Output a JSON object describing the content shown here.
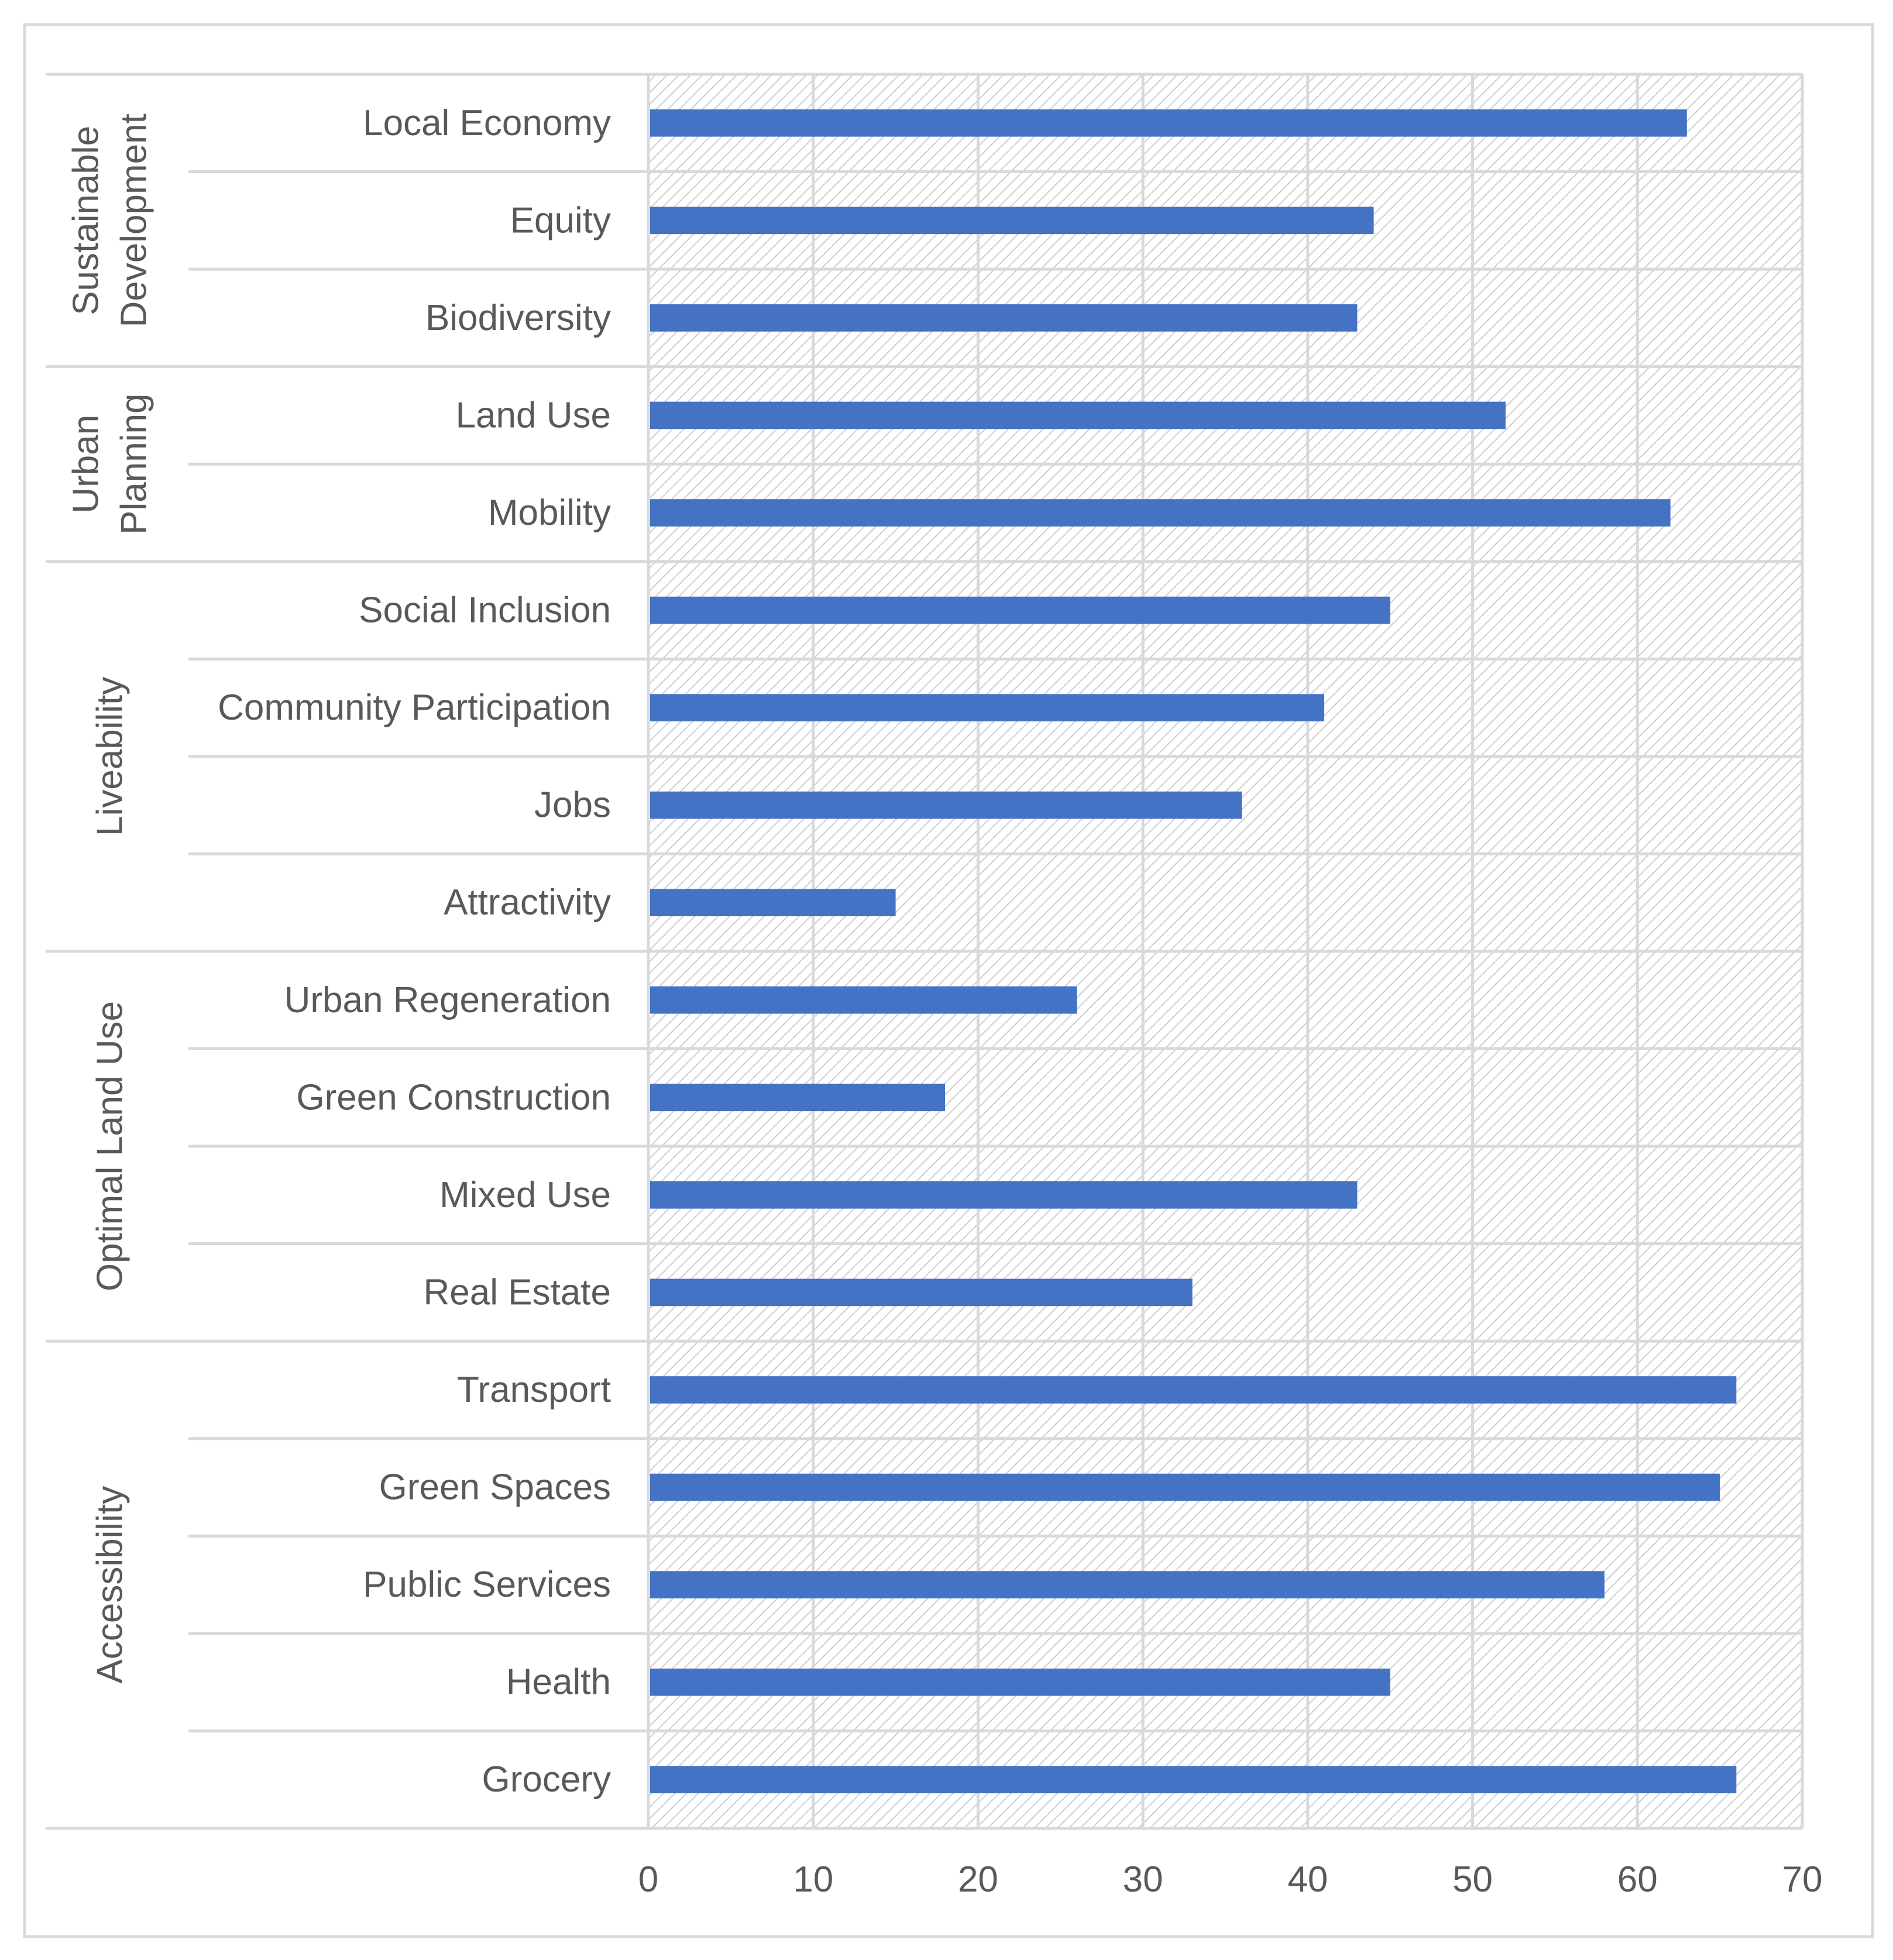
{
  "chart_data": {
    "type": "bar",
    "orientation": "horizontal",
    "title": "",
    "xlabel": "",
    "ylabel": "",
    "xlim": [
      0,
      70
    ],
    "x_ticks": [
      "0",
      "10",
      "20",
      "30",
      "40",
      "50",
      "60",
      "70"
    ],
    "grid": true,
    "legend": "none",
    "bar_color": "#4472C4",
    "groups": [
      {
        "name": "Sustainable Development",
        "label_lines": [
          "Sustainable",
          "Development"
        ],
        "categories": [
          "Local Economy",
          "Equity",
          "Biodiversity"
        ],
        "values": [
          63,
          44,
          43
        ]
      },
      {
        "name": "Urban Planning",
        "label_lines": [
          "Urban",
          "Planning"
        ],
        "categories": [
          "Land Use",
          "Mobility"
        ],
        "values": [
          52,
          62
        ]
      },
      {
        "name": "Liveability",
        "label_lines": [
          "Liveability"
        ],
        "categories": [
          "Social Inclusion",
          "Community Participation",
          "Jobs",
          "Attractivity"
        ],
        "values": [
          45,
          41,
          36,
          15
        ]
      },
      {
        "name": "Optimal Land Use",
        "label_lines": [
          "Optimal Land Use"
        ],
        "categories": [
          "Urban Regeneration",
          "Green Construction",
          "Mixed Use",
          "Real Estate"
        ],
        "values": [
          26,
          18,
          43,
          33
        ]
      },
      {
        "name": "Accessibility",
        "label_lines": [
          "Accessibility"
        ],
        "categories": [
          "Transport",
          "Green Spaces",
          "Public Services",
          "Health",
          "Grocery"
        ],
        "values": [
          66,
          65,
          58,
          45,
          66
        ]
      }
    ]
  }
}
